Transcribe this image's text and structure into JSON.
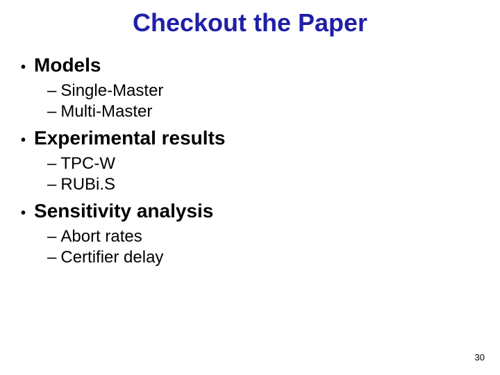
{
  "title": "Checkout the Paper",
  "bullets": [
    {
      "label": "Models",
      "subs": [
        "Single-Master",
        "Multi-Master"
      ]
    },
    {
      "label": "Experimental results",
      "subs": [
        "TPC-W",
        "RUBi.S"
      ]
    },
    {
      "label": "Sensitivity analysis",
      "subs": [
        "Abort rates",
        "Certifier delay"
      ]
    }
  ],
  "page_number": "30",
  "colors": {
    "title": "#1f1fa8",
    "text": "#000000",
    "background": "#ffffff"
  }
}
